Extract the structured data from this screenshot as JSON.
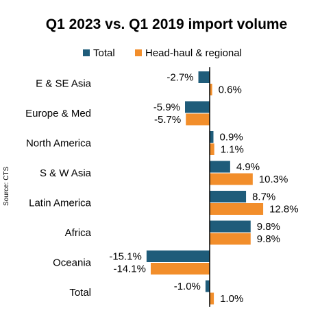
{
  "chart_data": {
    "type": "bar",
    "orientation": "horizontal",
    "title": "Q1 2023 vs. Q1 2019 import volume",
    "source": "Source: CTS",
    "categories": [
      "E & SE Asia",
      "Europe & Med",
      "North America",
      "S & W Asia",
      "Latin America",
      "Africa",
      "Oceania",
      "Total"
    ],
    "series": [
      {
        "name": "Total",
        "color": "#1f5c7a",
        "values": [
          -2.7,
          -5.9,
          0.9,
          4.9,
          8.7,
          9.8,
          -15.1,
          -1.0
        ],
        "labels": [
          "-2.7%",
          "-5.9%",
          "0.9%",
          "4.9%",
          "8.7%",
          "9.8%",
          "-15.1%",
          "-1.0%"
        ]
      },
      {
        "name": "Head-haul & regional",
        "color": "#f28e2b",
        "values": [
          0.6,
          -5.7,
          1.1,
          10.3,
          12.8,
          9.8,
          -14.1,
          1.0
        ],
        "labels": [
          "0.6%",
          "-5.7%",
          "1.1%",
          "10.3%",
          "12.8%",
          "9.8%",
          "-14.1%",
          "1.0%"
        ]
      }
    ],
    "legend_position": "top",
    "grid": false,
    "xlim": [
      -16,
      16
    ]
  }
}
